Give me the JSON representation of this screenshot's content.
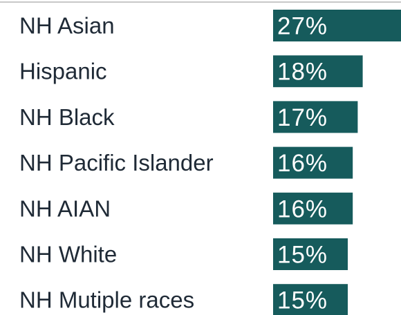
{
  "chart_data": {
    "type": "bar",
    "orientation": "horizontal",
    "categories": [
      "NH Asian",
      "Hispanic",
      "NH Black",
      "NH Pacific Islander",
      "NH AIAN",
      "NH White",
      "NH Mutiple races"
    ],
    "values": [
      27,
      18,
      17,
      16,
      16,
      15,
      15
    ],
    "value_labels": [
      "27%",
      "18%",
      "17%",
      "16%",
      "16%",
      "15%",
      "15%"
    ],
    "color": "#165b5c"
  }
}
